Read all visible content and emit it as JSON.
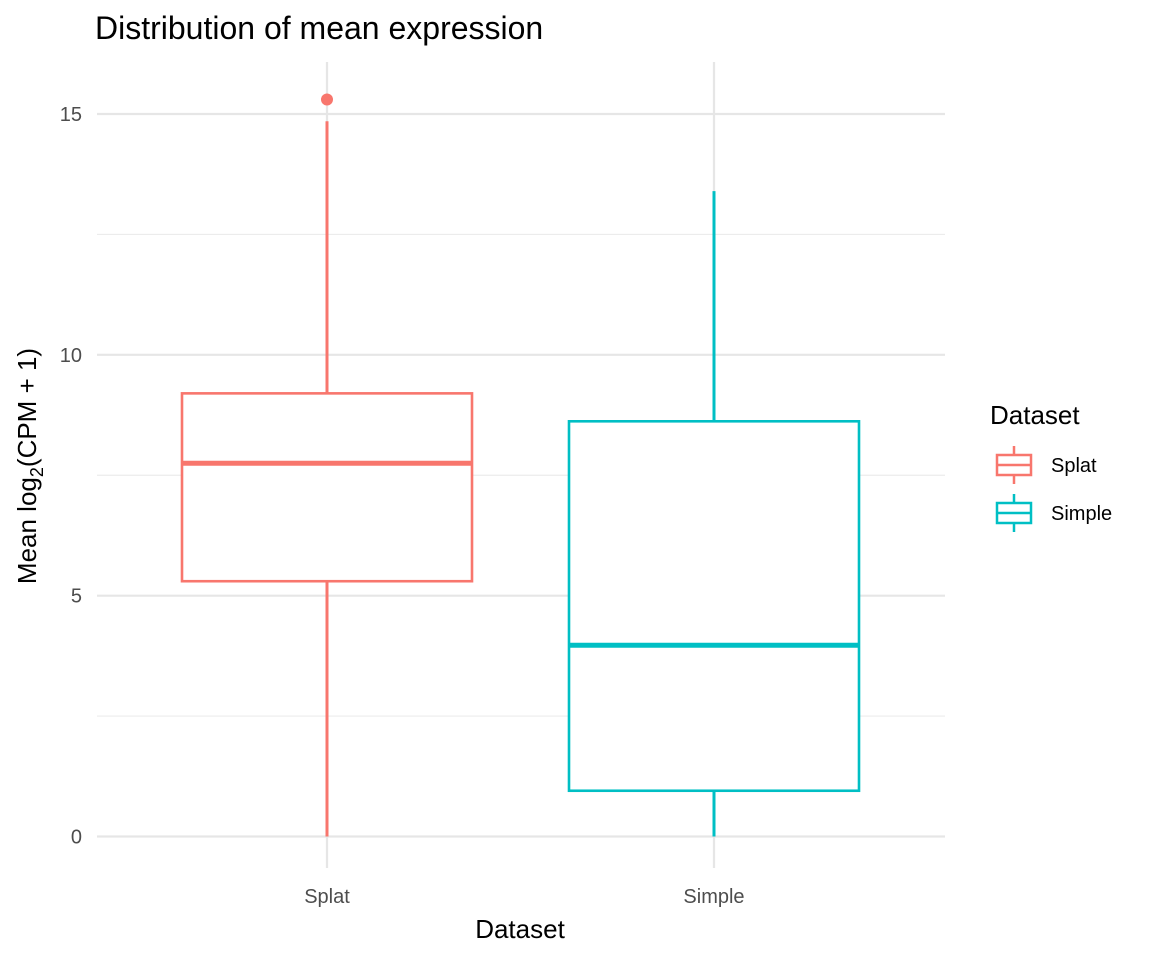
{
  "chart_data": {
    "type": "boxplot",
    "title": "Distribution of mean expression",
    "xlabel": "Dataset",
    "ylabel_prefix": "Mean log",
    "ylabel_subscript": "2",
    "ylabel_suffix": "(CPM + 1)",
    "ylim": [
      -0.6,
      16.1
    ],
    "y_major_ticks": [
      0,
      5,
      10,
      15
    ],
    "y_minor_ticks": [
      2.5,
      7.5,
      12.5
    ],
    "y_tick_labels": [
      "0",
      "5",
      "10",
      "15"
    ],
    "categories": [
      "Splat",
      "Simple"
    ],
    "grid": true,
    "legend": {
      "title": "Dataset",
      "position": "right",
      "entries": [
        "Splat",
        "Simple"
      ]
    },
    "series": [
      {
        "name": "Splat",
        "color": "#F8766D",
        "whisker_low": 0.0,
        "q1": 5.3,
        "median": 7.75,
        "q3": 9.2,
        "whisker_high": 14.85,
        "outliers": [
          15.3
        ]
      },
      {
        "name": "Simple",
        "color": "#00BFC4",
        "whisker_low": 0.0,
        "q1": 0.95,
        "median": 3.97,
        "q3": 8.62,
        "whisker_high": 13.4,
        "outliers": []
      }
    ]
  }
}
